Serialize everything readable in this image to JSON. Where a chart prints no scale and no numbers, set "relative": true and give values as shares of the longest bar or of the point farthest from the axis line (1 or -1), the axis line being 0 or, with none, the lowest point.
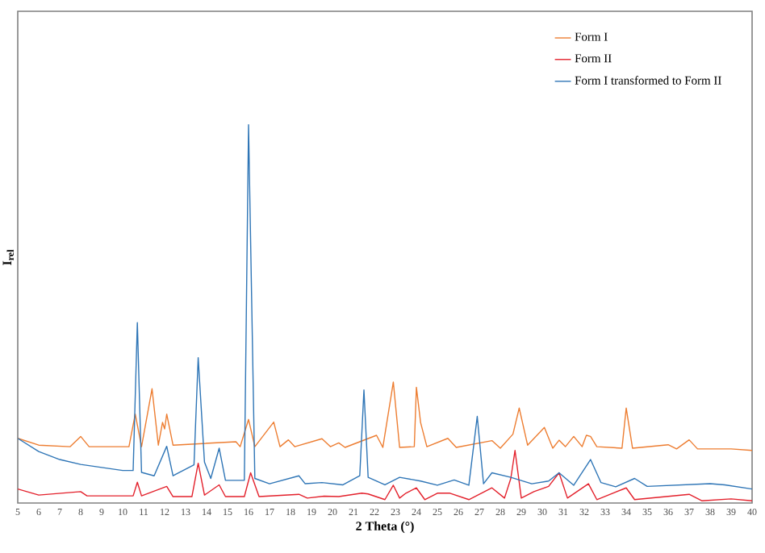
{
  "chart_data": {
    "type": "line",
    "relative": true,
    "xlabel": "2 Theta (°)",
    "ylabel": "I$_{rel}$",
    "legend": "top right",
    "grid": false,
    "marker": "none",
    "line_style": "solid",
    "xlim": [
      5,
      40
    ],
    "xticks": [
      5,
      6,
      7,
      8,
      9,
      10,
      11,
      12,
      13,
      14,
      15,
      16,
      17,
      18,
      19,
      20,
      21,
      22,
      23,
      24,
      25,
      26,
      27,
      28,
      29,
      30,
      31,
      32,
      33,
      34,
      35,
      36,
      37,
      38,
      39,
      40
    ],
    "series": [
      {
        "name": "Form I",
        "color": "#ed7d31",
        "x": [
          5,
          6,
          7.5,
          8.0,
          8.4,
          10.3,
          10.6,
          10.9,
          11.4,
          11.7,
          11.9,
          12.0,
          12.1,
          12.4,
          15.4,
          15.6,
          16.0,
          16.3,
          17.2,
          17.5,
          17.9,
          18.2,
          19.5,
          19.9,
          20.3,
          20.6,
          22.1,
          22.4,
          22.8,
          22.9,
          23.2,
          23.9,
          24.0,
          24.2,
          24.5,
          25.5,
          25.9,
          27.6,
          28.0,
          28.6,
          28.9,
          29.3,
          30.1,
          30.5,
          30.8,
          31.1,
          31.5,
          31.9,
          32.1,
          32.3,
          32.6,
          33.8,
          34.0,
          34.3,
          36.0,
          36.4,
          37.0,
          37.4,
          39.0,
          40
        ],
        "values": [
          0.171,
          0.153,
          0.149,
          0.176,
          0.149,
          0.149,
          0.235,
          0.149,
          0.302,
          0.153,
          0.213,
          0.196,
          0.235,
          0.153,
          0.162,
          0.149,
          0.221,
          0.149,
          0.214,
          0.149,
          0.167,
          0.149,
          0.17,
          0.149,
          0.159,
          0.147,
          0.179,
          0.147,
          0.285,
          0.32,
          0.147,
          0.149,
          0.306,
          0.213,
          0.149,
          0.171,
          0.147,
          0.165,
          0.145,
          0.182,
          0.251,
          0.153,
          0.2,
          0.145,
          0.166,
          0.149,
          0.176,
          0.149,
          0.179,
          0.176,
          0.149,
          0.145,
          0.251,
          0.145,
          0.154,
          0.143,
          0.167,
          0.143,
          0.143,
          0.139
        ]
      },
      {
        "name": "Form II",
        "color": "#e3202b",
        "x": [
          5,
          6,
          8,
          8.3,
          10.5,
          10.7,
          10.9,
          12.1,
          12.4,
          13.3,
          13.6,
          13.9,
          14.6,
          14.9,
          15.8,
          16.1,
          16.5,
          18.4,
          18.8,
          19.6,
          20.3,
          21.4,
          21.7,
          22.5,
          22.9,
          23.2,
          23.5,
          24.0,
          24.4,
          25.0,
          25.6,
          26.5,
          27.6,
          28.2,
          28.5,
          28.7,
          29.0,
          29.6,
          30.3,
          30.8,
          31.2,
          32.2,
          32.6,
          34.0,
          34.4,
          37.0,
          37.6,
          39.0,
          40
        ],
        "values": [
          0.037,
          0.021,
          0.03,
          0.019,
          0.019,
          0.055,
          0.019,
          0.044,
          0.017,
          0.017,
          0.105,
          0.021,
          0.048,
          0.017,
          0.017,
          0.08,
          0.017,
          0.023,
          0.013,
          0.018,
          0.017,
          0.026,
          0.024,
          0.009,
          0.047,
          0.013,
          0.026,
          0.04,
          0.009,
          0.026,
          0.026,
          0.009,
          0.04,
          0.013,
          0.065,
          0.139,
          0.013,
          0.03,
          0.044,
          0.08,
          0.013,
          0.051,
          0.009,
          0.04,
          0.009,
          0.023,
          0.006,
          0.011,
          0.006
        ]
      },
      {
        "name": "Form I transformed to Form II",
        "color": "#2e75b6",
        "x": [
          5,
          6,
          7,
          8,
          9,
          10,
          10.5,
          10.7,
          10.9,
          11.5,
          12.1,
          12.4,
          13.4,
          13.6,
          13.9,
          14.2,
          14.6,
          14.9,
          15.8,
          16.0,
          16.3,
          17,
          18.4,
          18.7,
          19.5,
          20.5,
          21.3,
          21.5,
          21.7,
          22.5,
          23.2,
          24.2,
          25,
          25.8,
          26.5,
          26.9,
          27.2,
          27.6,
          28.5,
          29.5,
          30.3,
          30.8,
          31.5,
          32.3,
          32.8,
          33.5,
          34.4,
          35,
          38,
          38.7,
          40
        ],
        "values": [
          0.171,
          0.136,
          0.115,
          0.102,
          0.094,
          0.086,
          0.086,
          0.477,
          0.081,
          0.072,
          0.15,
          0.072,
          0.101,
          0.384,
          0.108,
          0.065,
          0.145,
          0.06,
          0.06,
          1.0,
          0.065,
          0.051,
          0.072,
          0.051,
          0.054,
          0.048,
          0.072,
          0.299,
          0.068,
          0.048,
          0.068,
          0.058,
          0.047,
          0.061,
          0.047,
          0.229,
          0.051,
          0.08,
          0.068,
          0.051,
          0.058,
          0.08,
          0.047,
          0.115,
          0.054,
          0.043,
          0.065,
          0.044,
          0.051,
          0.048,
          0.037
        ]
      }
    ]
  }
}
